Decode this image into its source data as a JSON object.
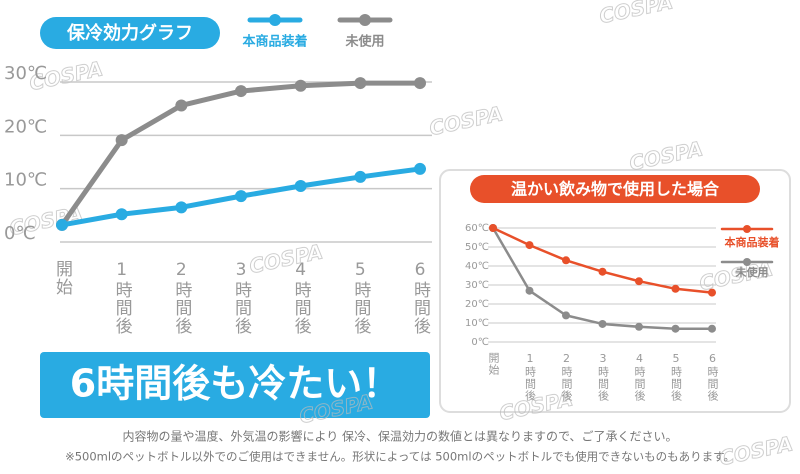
{
  "chart_data": [
    {
      "type": "line",
      "title": "保冷効力グラフ",
      "categories": [
        "開始",
        "1時間後",
        "2時間後",
        "3時間後",
        "4時間後",
        "5時間後",
        "6時間後"
      ],
      "series": [
        {
          "name": "本商品装着",
          "color": "#29abe2",
          "values": [
            3.2,
            5.2,
            6.5,
            8.6,
            10.5,
            12.2,
            13.7
          ]
        },
        {
          "name": "未使用",
          "color": "#8c8c8c",
          "values": [
            3.2,
            19.1,
            25.6,
            28.3,
            29.3,
            29.8,
            29.8
          ]
        }
      ],
      "ylim": [
        0,
        30
      ],
      "yticks": [
        {
          "value": 0,
          "label": "0℃"
        },
        {
          "value": 10,
          "label": "10℃"
        },
        {
          "value": 20,
          "label": "20℃"
        },
        {
          "value": 30,
          "label": "30℃"
        }
      ],
      "grid": true
    },
    {
      "type": "line",
      "title": "温かい飲み物で使用した場合",
      "categories": [
        "開始",
        "1時間後",
        "2時間後",
        "3時間後",
        "4時間後",
        "5時間後",
        "6時間後"
      ],
      "series": [
        {
          "name": "本商品装着",
          "color": "#e8502a",
          "values": [
            60,
            51,
            43,
            37,
            32,
            28,
            26
          ]
        },
        {
          "name": "未使用",
          "color": "#8c8c8c",
          "values": [
            60,
            27,
            14,
            9.5,
            8,
            7,
            7
          ]
        }
      ],
      "ylim": [
        0,
        60
      ],
      "yticks": [
        {
          "value": 0,
          "label": "0℃"
        },
        {
          "value": 10,
          "label": "10℃"
        },
        {
          "value": 20,
          "label": "20℃"
        },
        {
          "value": 30,
          "label": "30℃"
        },
        {
          "value": 40,
          "label": "40℃"
        },
        {
          "value": 50,
          "label": "50℃"
        },
        {
          "value": 60,
          "label": "60℃"
        }
      ],
      "grid": true
    }
  ],
  "banner": "6時間後も冷たい！",
  "notes": [
    "内容物の量や温度、外気温の影響により 保冷、保温効力の数値とは異なりますので、ご了承ください。",
    "※500mlのペットボトル以外でのご使用はできません。形状によっては 500mlのペットボトルでも使用できないものもあります。"
  ],
  "watermark": "COSPA"
}
